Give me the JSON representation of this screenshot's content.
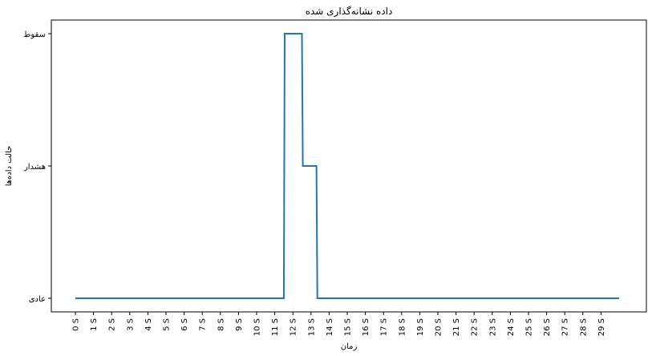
{
  "chart_data": {
    "type": "line",
    "title": "داده نشانه‌گذاری شده",
    "xlabel": "زمان",
    "ylabel": "حالت داده‌ها",
    "x_ticks": [
      "0 S",
      "1 S",
      "2 S",
      "3 S",
      "4 S",
      "5 S",
      "6 S",
      "7 S",
      "8 S",
      "9 S",
      "10 S",
      "11 S",
      "12 S",
      "13 S",
      "14 S",
      "15 S",
      "16 S",
      "17 S",
      "18 S",
      "19 S",
      "20 S",
      "21 S",
      "22 S",
      "23 S",
      "24 S",
      "25 S",
      "26 S",
      "27 S",
      "28 S",
      "29 S"
    ],
    "y_categories": [
      "عادی",
      "هشدار",
      "سقوط"
    ],
    "x": [
      0,
      11.5,
      11.55,
      12.5,
      12.55,
      13.3,
      13.35,
      30
    ],
    "y": [
      "عادی",
      "عادی",
      "سقوط",
      "سقوط",
      "هشدار",
      "هشدار",
      "عادی",
      "عادی"
    ],
    "xlim": [
      -0.5,
      30.5
    ],
    "grid": false,
    "line_color": "#1f77b4"
  }
}
